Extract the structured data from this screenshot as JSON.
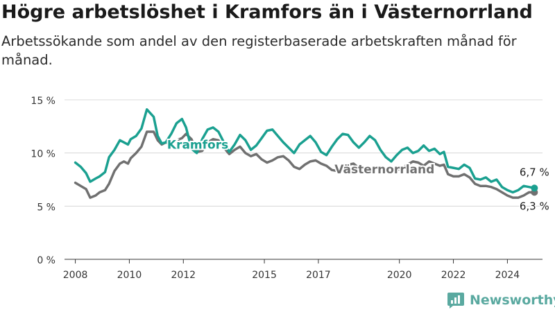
{
  "title": "Högre arbetslöshet i Kramfors än i Västernorrland",
  "subtitle": "Arbetssökande som andel av den registerbaserade arbetskraften månad för månad.",
  "brand": {
    "name": "Newsworthy",
    "icon": "newsworthy-logo-icon",
    "color": "#5aa9a0"
  },
  "chart_data": {
    "type": "line",
    "ylim": [
      0,
      15
    ],
    "xlim": [
      2007.6,
      2025.3
    ],
    "y_ticks": [
      0,
      5,
      10,
      15
    ],
    "y_tick_labels": [
      "0 %",
      "5 %",
      "10 %",
      "15 %"
    ],
    "x_ticks": [
      2008,
      2010,
      2012,
      2015,
      2017,
      2020,
      2022,
      2024
    ],
    "x_tick_labels": [
      "2008",
      "2010",
      "2012",
      "2015",
      "2017",
      "2020",
      "2022",
      "2024"
    ],
    "grid": true,
    "series": [
      {
        "name": "Västernorrland",
        "color": "#707070",
        "end_label": "6,3 %",
        "points": [
          [
            2008.0,
            7.2
          ],
          [
            2008.2,
            6.9
          ],
          [
            2008.4,
            6.6
          ],
          [
            2008.55,
            5.8
          ],
          [
            2008.75,
            6.0
          ],
          [
            2008.9,
            6.3
          ],
          [
            2009.1,
            6.5
          ],
          [
            2009.25,
            7.1
          ],
          [
            2009.45,
            8.3
          ],
          [
            2009.65,
            9.0
          ],
          [
            2009.8,
            9.2
          ],
          [
            2009.95,
            9.0
          ],
          [
            2010.05,
            9.5
          ],
          [
            2010.25,
            10.0
          ],
          [
            2010.45,
            10.6
          ],
          [
            2010.65,
            12.0
          ],
          [
            2010.9,
            12.0
          ],
          [
            2011.05,
            11.2
          ],
          [
            2011.2,
            10.8
          ],
          [
            2011.35,
            11.0
          ],
          [
            2011.55,
            10.8
          ],
          [
            2011.75,
            11.2
          ],
          [
            2011.95,
            11.4
          ],
          [
            2012.1,
            11.8
          ],
          [
            2012.3,
            11.3
          ],
          [
            2012.5,
            10.1
          ],
          [
            2012.7,
            10.2
          ],
          [
            2012.9,
            11.0
          ],
          [
            2013.1,
            11.3
          ],
          [
            2013.3,
            11.2
          ],
          [
            2013.5,
            10.5
          ],
          [
            2013.7,
            9.9
          ],
          [
            2013.9,
            10.3
          ],
          [
            2014.1,
            10.6
          ],
          [
            2014.3,
            10.0
          ],
          [
            2014.5,
            9.7
          ],
          [
            2014.7,
            9.9
          ],
          [
            2014.9,
            9.4
          ],
          [
            2015.1,
            9.1
          ],
          [
            2015.3,
            9.3
          ],
          [
            2015.5,
            9.6
          ],
          [
            2015.7,
            9.7
          ],
          [
            2015.9,
            9.3
          ],
          [
            2016.1,
            8.7
          ],
          [
            2016.3,
            8.5
          ],
          [
            2016.5,
            8.9
          ],
          [
            2016.7,
            9.2
          ],
          [
            2016.9,
            9.3
          ],
          [
            2017.1,
            9.0
          ],
          [
            2017.3,
            8.8
          ],
          [
            2017.5,
            8.4
          ],
          [
            2017.7,
            8.3
          ],
          [
            2017.9,
            8.7
          ],
          [
            2018.1,
            8.9
          ],
          [
            2018.3,
            9.0
          ],
          [
            2018.5,
            8.6
          ],
          [
            2018.7,
            8.4
          ],
          [
            2018.9,
            8.3
          ],
          [
            2019.1,
            8.5
          ],
          [
            2019.3,
            8.6
          ],
          [
            2019.5,
            8.4
          ],
          [
            2019.7,
            8.2
          ],
          [
            2019.9,
            8.4
          ],
          [
            2020.1,
            8.6
          ],
          [
            2020.3,
            8.9
          ],
          [
            2020.5,
            9.2
          ],
          [
            2020.7,
            9.1
          ],
          [
            2020.9,
            8.8
          ],
          [
            2021.1,
            9.2
          ],
          [
            2021.3,
            9.0
          ],
          [
            2021.5,
            8.8
          ],
          [
            2021.65,
            8.9
          ],
          [
            2021.8,
            8.0
          ],
          [
            2022.0,
            7.8
          ],
          [
            2022.2,
            7.8
          ],
          [
            2022.4,
            8.0
          ],
          [
            2022.6,
            7.7
          ],
          [
            2022.8,
            7.1
          ],
          [
            2023.0,
            6.9
          ],
          [
            2023.2,
            6.9
          ],
          [
            2023.4,
            6.8
          ],
          [
            2023.6,
            6.6
          ],
          [
            2023.8,
            6.3
          ],
          [
            2024.0,
            6.0
          ],
          [
            2024.2,
            5.8
          ],
          [
            2024.4,
            5.8
          ],
          [
            2024.6,
            6.0
          ],
          [
            2024.8,
            6.3
          ],
          [
            2025.0,
            6.3
          ]
        ]
      },
      {
        "name": "Kramfors",
        "color": "#1aa090",
        "end_label": "6,7 %",
        "points": [
          [
            2008.0,
            9.1
          ],
          [
            2008.2,
            8.7
          ],
          [
            2008.4,
            8.1
          ],
          [
            2008.55,
            7.3
          ],
          [
            2008.75,
            7.6
          ],
          [
            2008.9,
            7.8
          ],
          [
            2009.1,
            8.2
          ],
          [
            2009.25,
            9.6
          ],
          [
            2009.45,
            10.3
          ],
          [
            2009.65,
            11.2
          ],
          [
            2009.8,
            11.0
          ],
          [
            2009.95,
            10.8
          ],
          [
            2010.05,
            11.3
          ],
          [
            2010.25,
            11.6
          ],
          [
            2010.45,
            12.3
          ],
          [
            2010.65,
            14.1
          ],
          [
            2010.9,
            13.4
          ],
          [
            2011.05,
            11.6
          ],
          [
            2011.2,
            10.9
          ],
          [
            2011.35,
            11.0
          ],
          [
            2011.55,
            11.8
          ],
          [
            2011.75,
            12.8
          ],
          [
            2011.95,
            13.2
          ],
          [
            2012.1,
            12.4
          ],
          [
            2012.3,
            10.4
          ],
          [
            2012.5,
            10.0
          ],
          [
            2012.7,
            11.3
          ],
          [
            2012.9,
            12.2
          ],
          [
            2013.1,
            12.4
          ],
          [
            2013.3,
            12.0
          ],
          [
            2013.5,
            11.0
          ],
          [
            2013.7,
            10.1
          ],
          [
            2013.9,
            10.8
          ],
          [
            2014.1,
            11.7
          ],
          [
            2014.3,
            11.2
          ],
          [
            2014.5,
            10.3
          ],
          [
            2014.7,
            10.7
          ],
          [
            2014.9,
            11.4
          ],
          [
            2015.1,
            12.1
          ],
          [
            2015.3,
            12.2
          ],
          [
            2015.5,
            11.6
          ],
          [
            2015.7,
            11.0
          ],
          [
            2015.9,
            10.5
          ],
          [
            2016.1,
            10.0
          ],
          [
            2016.3,
            10.8
          ],
          [
            2016.5,
            11.2
          ],
          [
            2016.7,
            11.6
          ],
          [
            2016.9,
            11.0
          ],
          [
            2017.1,
            10.1
          ],
          [
            2017.3,
            9.8
          ],
          [
            2017.5,
            10.6
          ],
          [
            2017.7,
            11.3
          ],
          [
            2017.9,
            11.8
          ],
          [
            2018.1,
            11.7
          ],
          [
            2018.3,
            11.0
          ],
          [
            2018.5,
            10.5
          ],
          [
            2018.7,
            11.0
          ],
          [
            2018.9,
            11.6
          ],
          [
            2019.1,
            11.2
          ],
          [
            2019.3,
            10.3
          ],
          [
            2019.5,
            9.6
          ],
          [
            2019.7,
            9.2
          ],
          [
            2019.9,
            9.8
          ],
          [
            2020.1,
            10.3
          ],
          [
            2020.3,
            10.5
          ],
          [
            2020.5,
            10.0
          ],
          [
            2020.7,
            10.2
          ],
          [
            2020.9,
            10.7
          ],
          [
            2021.1,
            10.2
          ],
          [
            2021.3,
            10.4
          ],
          [
            2021.5,
            9.9
          ],
          [
            2021.65,
            10.1
          ],
          [
            2021.8,
            8.7
          ],
          [
            2022.0,
            8.6
          ],
          [
            2022.2,
            8.5
          ],
          [
            2022.4,
            8.9
          ],
          [
            2022.6,
            8.6
          ],
          [
            2022.8,
            7.6
          ],
          [
            2023.0,
            7.5
          ],
          [
            2023.2,
            7.7
          ],
          [
            2023.4,
            7.3
          ],
          [
            2023.6,
            7.5
          ],
          [
            2023.8,
            6.8
          ],
          [
            2024.0,
            6.5
          ],
          [
            2024.2,
            6.3
          ],
          [
            2024.4,
            6.5
          ],
          [
            2024.6,
            6.9
          ],
          [
            2024.8,
            6.8
          ],
          [
            2025.0,
            6.7
          ]
        ]
      }
    ]
  }
}
